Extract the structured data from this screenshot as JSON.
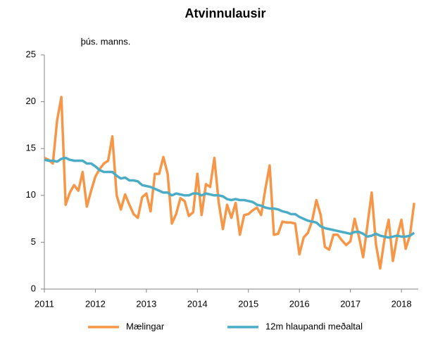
{
  "chart_data": {
    "type": "line",
    "title": "Atvinnulausir",
    "ylabel": "þús. manns.",
    "x": [
      2011.0,
      2011.083,
      2011.167,
      2011.25,
      2011.333,
      2011.417,
      2011.5,
      2011.583,
      2011.667,
      2011.75,
      2011.833,
      2011.917,
      2012.0,
      2012.083,
      2012.167,
      2012.25,
      2012.333,
      2012.417,
      2012.5,
      2012.583,
      2012.667,
      2012.75,
      2012.833,
      2012.917,
      2013.0,
      2013.083,
      2013.167,
      2013.25,
      2013.333,
      2013.417,
      2013.5,
      2013.583,
      2013.667,
      2013.75,
      2013.833,
      2013.917,
      2014.0,
      2014.083,
      2014.167,
      2014.25,
      2014.333,
      2014.417,
      2014.5,
      2014.583,
      2014.667,
      2014.75,
      2014.833,
      2014.917,
      2015.0,
      2015.083,
      2015.167,
      2015.25,
      2015.333,
      2015.417,
      2015.5,
      2015.583,
      2015.667,
      2015.75,
      2015.833,
      2015.917,
      2016.0,
      2016.083,
      2016.167,
      2016.25,
      2016.333,
      2016.417,
      2016.5,
      2016.583,
      2016.667,
      2016.75,
      2016.833,
      2016.917,
      2017.0,
      2017.083,
      2017.167,
      2017.25,
      2017.333,
      2017.417,
      2017.5,
      2017.583,
      2017.667,
      2017.75,
      2017.833,
      2017.917,
      2018.0,
      2018.083,
      2018.167,
      2018.25
    ],
    "series": [
      {
        "name": "Mælingar",
        "color": "#f79646",
        "values": [
          14,
          13.8,
          13.4,
          18,
          20.5,
          9,
          10.3,
          11.1,
          10.5,
          12.5,
          8.8,
          10.5,
          12,
          12.8,
          13.4,
          13.7,
          16.3,
          10,
          8.5,
          10.1,
          9,
          8,
          7.6,
          9.8,
          10.2,
          8.3,
          12.3,
          12.3,
          14.1,
          12.3,
          7,
          8,
          9.7,
          9.4,
          7.8,
          8.2,
          12.3,
          7.9,
          11.2,
          10.9,
          14,
          9.3,
          6.4,
          9,
          7.6,
          9.2,
          5.8,
          7.9,
          8,
          8.4,
          8.7,
          7.9,
          10.7,
          13.2,
          5.8,
          5.9,
          7.2,
          7.1,
          7.1,
          7,
          3.7,
          5.5,
          6,
          7.3,
          9.5,
          7.9,
          4.5,
          4.2,
          5.8,
          5.8,
          5.2,
          4.7,
          5.1,
          7.5,
          5.6,
          3.4,
          6.8,
          10.3,
          4.8,
          2.2,
          5.3,
          7.4,
          3.0,
          5.6,
          7.4,
          4.3,
          5.7,
          9.2
        ]
      },
      {
        "name": "12m hlaupandi meðaltal",
        "color": "#4bacc6",
        "values": [
          13.8,
          13.7,
          13.7,
          13.6,
          13.9,
          14.0,
          13.8,
          13.7,
          13.7,
          13.7,
          13.4,
          13.4,
          13.1,
          12.7,
          12.5,
          12.5,
          12.5,
          12.1,
          11.8,
          11.9,
          11.6,
          11.6,
          11.5,
          11.1,
          11.0,
          10.9,
          10.7,
          10.5,
          10.3,
          10.3,
          10.0,
          10.2,
          10.1,
          10.0,
          10.0,
          10.2,
          10.2,
          10.0,
          10.2,
          10.1,
          10.0,
          10.0,
          9.9,
          9.6,
          9.5,
          9.6,
          9.5,
          9.5,
          9.4,
          9.3,
          9.0,
          8.9,
          8.7,
          8.6,
          8.6,
          8.5,
          8.3,
          8.2,
          8.0,
          8.0,
          7.7,
          7.5,
          7.3,
          7.2,
          7.1,
          6.7,
          6.5,
          6.4,
          6.3,
          6.2,
          6.1,
          6.0,
          5.9,
          6.1,
          6.1,
          5.9,
          5.6,
          5.7,
          5.9,
          5.7,
          5.6,
          5.5,
          5.6,
          5.7,
          5.6,
          5.6,
          5.7,
          6.0
        ]
      }
    ],
    "xlim": [
      2011,
      2018.33
    ],
    "xticks": [
      2011,
      2012,
      2013,
      2014,
      2015,
      2016,
      2017,
      2018
    ],
    "ylim": [
      0,
      25
    ],
    "yticks": [
      0,
      5,
      10,
      15,
      20,
      25
    ],
    "grid": false,
    "legend": "bottom"
  }
}
